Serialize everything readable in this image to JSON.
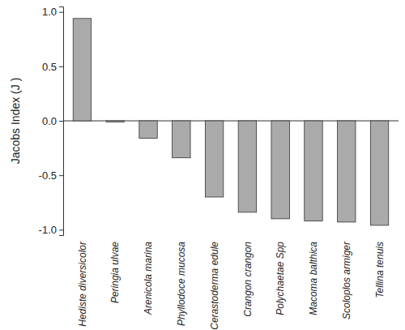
{
  "chart_data": {
    "type": "bar",
    "y_label": "Jacobs Index (J )",
    "categories": [
      "Hediste diversicolor",
      "Peringia ulvae",
      "Arenicola marina",
      "Phyllodoce mucosa",
      "Cerastoderma edule",
      "Crangon crangon",
      "Polychaetae Spp",
      "Macoma balthica",
      "Scoloplos armiger",
      "Tellina tenuis"
    ],
    "values": [
      0.94,
      -0.01,
      -0.16,
      -0.34,
      -0.7,
      -0.84,
      -0.9,
      -0.92,
      -0.93,
      -0.96
    ],
    "color": "#aaaaaa",
    "ylim": [
      -1.05,
      1.05
    ],
    "yticks": [
      {
        "value": -1,
        "label": "-1.0"
      },
      {
        "value": -0.5,
        "label": "-0.5"
      },
      {
        "value": 0,
        "label": "0.0"
      },
      {
        "value": 0.5,
        "label": "0.5"
      },
      {
        "value": 1,
        "label": "1.0"
      }
    ],
    "grid": false
  }
}
